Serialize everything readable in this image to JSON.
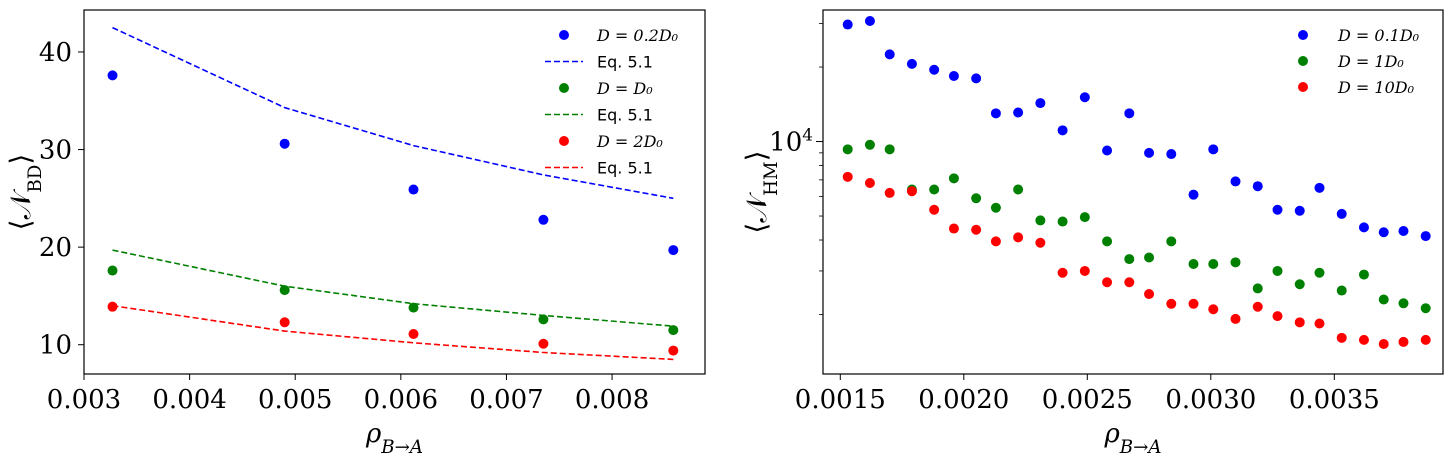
{
  "chart_data": [
    {
      "type": "scatter",
      "title": "",
      "xlabel": "ρ_{B→A}",
      "ylabel": "⟨𝒩_BD⟩",
      "xlim": [
        0.003,
        0.00888
      ],
      "ylim": [
        7,
        44.3
      ],
      "yscale": "linear",
      "xticks": [
        0.003,
        0.004,
        0.005,
        0.006,
        0.007,
        0.008
      ],
      "xtick_labels": [
        "0.003",
        "0.004",
        "0.005",
        "0.006",
        "0.007",
        "0.008"
      ],
      "yticks": [
        10,
        20,
        30,
        40
      ],
      "ytick_labels": [
        "10",
        "20",
        "30",
        "40"
      ],
      "legend_position": "top-right",
      "series": [
        {
          "name": "D = 0.2D₀",
          "kind": "scatter",
          "color": "#0000ff",
          "x": [
            0.00327,
            0.0049,
            0.00612,
            0.00735,
            0.00858
          ],
          "y": [
            37.6,
            30.6,
            25.9,
            22.8,
            19.7
          ]
        },
        {
          "name": "Eq. 5.1",
          "kind": "line",
          "color": "#0000ff",
          "x": [
            0.00327,
            0.0049,
            0.00612,
            0.00735,
            0.00858
          ],
          "y": [
            42.5,
            34.3,
            30.4,
            27.4,
            25.0
          ]
        },
        {
          "name": "D = D₀",
          "kind": "scatter",
          "color": "#008000",
          "x": [
            0.00327,
            0.0049,
            0.00612,
            0.00735,
            0.00858
          ],
          "y": [
            17.6,
            15.6,
            13.8,
            12.6,
            11.5
          ]
        },
        {
          "name": "Eq. 5.1",
          "kind": "line",
          "color": "#008000",
          "x": [
            0.00327,
            0.0049,
            0.00612,
            0.00735,
            0.00858
          ],
          "y": [
            19.7,
            16.0,
            14.2,
            13.0,
            11.9
          ]
        },
        {
          "name": "D = 2D₀",
          "kind": "scatter",
          "color": "#ff0000",
          "x": [
            0.00327,
            0.0049,
            0.00612,
            0.00735,
            0.00858
          ],
          "y": [
            13.9,
            12.3,
            11.1,
            10.1,
            9.4
          ]
        },
        {
          "name": "Eq. 5.1",
          "kind": "line",
          "color": "#ff0000",
          "x": [
            0.00327,
            0.0049,
            0.00612,
            0.00735,
            0.00858
          ],
          "y": [
            14.0,
            11.4,
            10.2,
            9.2,
            8.5
          ]
        }
      ]
    },
    {
      "type": "scatter",
      "title": "",
      "xlabel": "ρ_{B→A}",
      "ylabel": "⟨𝒩_HM⟩",
      "xlim": [
        0.00143,
        0.00394
      ],
      "ylim": [
        1150,
        34000
      ],
      "yscale": "log",
      "xticks": [
        0.0015,
        0.002,
        0.0025,
        0.003,
        0.0035
      ],
      "xtick_labels": [
        "0.0015",
        "0.0020",
        "0.0025",
        "0.0030",
        "0.0035"
      ],
      "ytick_label_base": "10",
      "ytick_label_exp": "4",
      "ytick_value": 10000,
      "minor_yticks": [
        2000,
        3000,
        4000,
        5000,
        6000,
        7000,
        8000,
        9000,
        20000,
        30000
      ],
      "legend_position": "top-right",
      "series": [
        {
          "name": "D = 0.1D₀",
          "kind": "scatter",
          "color": "#0000ff",
          "x": [
            0.00153,
            0.00162,
            0.0017,
            0.00179,
            0.00188,
            0.00196,
            0.00205,
            0.00213,
            0.00222,
            0.00231,
            0.0024,
            0.00249,
            0.00258,
            0.00267,
            0.00275,
            0.00284,
            0.00293,
            0.00301,
            0.0031,
            0.00319,
            0.00327,
            0.00336,
            0.00344,
            0.00353,
            0.00362,
            0.0037,
            0.00378,
            0.00387
          ],
          "y": [
            29700,
            30700,
            22500,
            20600,
            19500,
            18400,
            18000,
            13000,
            13100,
            14300,
            11100,
            15100,
            9200,
            13000,
            9000,
            8900,
            6100,
            9300,
            6900,
            6600,
            5300,
            5250,
            6500,
            5100,
            4500,
            4300,
            4350,
            4150
          ]
        },
        {
          "name": "D = 1D₀",
          "kind": "scatter",
          "color": "#008000",
          "x": [
            0.00153,
            0.00162,
            0.0017,
            0.00179,
            0.00188,
            0.00196,
            0.00205,
            0.00213,
            0.00222,
            0.00231,
            0.0024,
            0.00249,
            0.00258,
            0.00267,
            0.00275,
            0.00284,
            0.00293,
            0.00301,
            0.0031,
            0.00319,
            0.00327,
            0.00336,
            0.00344,
            0.00353,
            0.00362,
            0.0037,
            0.00378,
            0.00387
          ],
          "y": [
            9300,
            9700,
            9300,
            6400,
            6400,
            7100,
            5900,
            5400,
            6400,
            4800,
            4750,
            4950,
            3950,
            3350,
            3400,
            3950,
            3200,
            3200,
            3250,
            2550,
            3000,
            2650,
            2950,
            2500,
            2900,
            2300,
            2220,
            2120
          ]
        },
        {
          "name": "D = 10D₀",
          "kind": "scatter",
          "color": "#ff0000",
          "x": [
            0.00153,
            0.00162,
            0.0017,
            0.00179,
            0.00188,
            0.00196,
            0.00205,
            0.00213,
            0.00222,
            0.00231,
            0.0024,
            0.00249,
            0.00258,
            0.00267,
            0.00275,
            0.00284,
            0.00293,
            0.00301,
            0.0031,
            0.00319,
            0.00327,
            0.00336,
            0.00344,
            0.00353,
            0.00362,
            0.0037,
            0.00378,
            0.00387
          ],
          "y": [
            7200,
            6800,
            6200,
            6300,
            5300,
            4450,
            4400,
            3950,
            4100,
            3900,
            2950,
            3000,
            2700,
            2700,
            2420,
            2210,
            2210,
            2100,
            1920,
            2150,
            1970,
            1860,
            1840,
            1610,
            1580,
            1520,
            1550,
            1580
          ]
        }
      ]
    }
  ]
}
